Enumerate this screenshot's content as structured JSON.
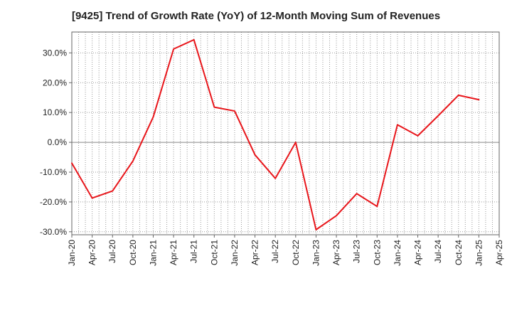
{
  "chart_data": {
    "type": "line",
    "title": "[9425]  Trend of Growth Rate (YoY) of 12-Month Moving Sum of Revenues",
    "xlabel": "",
    "ylabel": "",
    "x_tick_labels": [
      "Jan-20",
      "Apr-20",
      "Jul-20",
      "Oct-20",
      "Jan-21",
      "Apr-21",
      "Jul-21",
      "Oct-21",
      "Jan-22",
      "Apr-22",
      "Jul-22",
      "Oct-22",
      "Jan-23",
      "Apr-23",
      "Jul-23",
      "Oct-23",
      "Jan-24",
      "Apr-24",
      "Jul-24",
      "Oct-24",
      "Jan-25",
      "Apr-25"
    ],
    "y_tick_values": [
      -30,
      -20,
      -10,
      0,
      10,
      20,
      30
    ],
    "y_tick_labels": [
      "-30.0%",
      "-20.0%",
      "-10.0%",
      "0.0%",
      "10.0%",
      "20.0%",
      "30.0%"
    ],
    "ylim": [
      -31,
      37
    ],
    "grid": true,
    "line_color": "#e8161b",
    "series": [
      {
        "values": [
          -7.0,
          -18.7,
          -16.3,
          -6.3,
          8.5,
          31.3,
          34.4,
          11.8,
          10.5,
          -4.2,
          -12.1,
          0.0,
          -29.3,
          -24.6,
          -17.2,
          -21.5,
          5.9,
          2.2,
          8.9,
          15.8,
          14.3
        ]
      }
    ]
  }
}
